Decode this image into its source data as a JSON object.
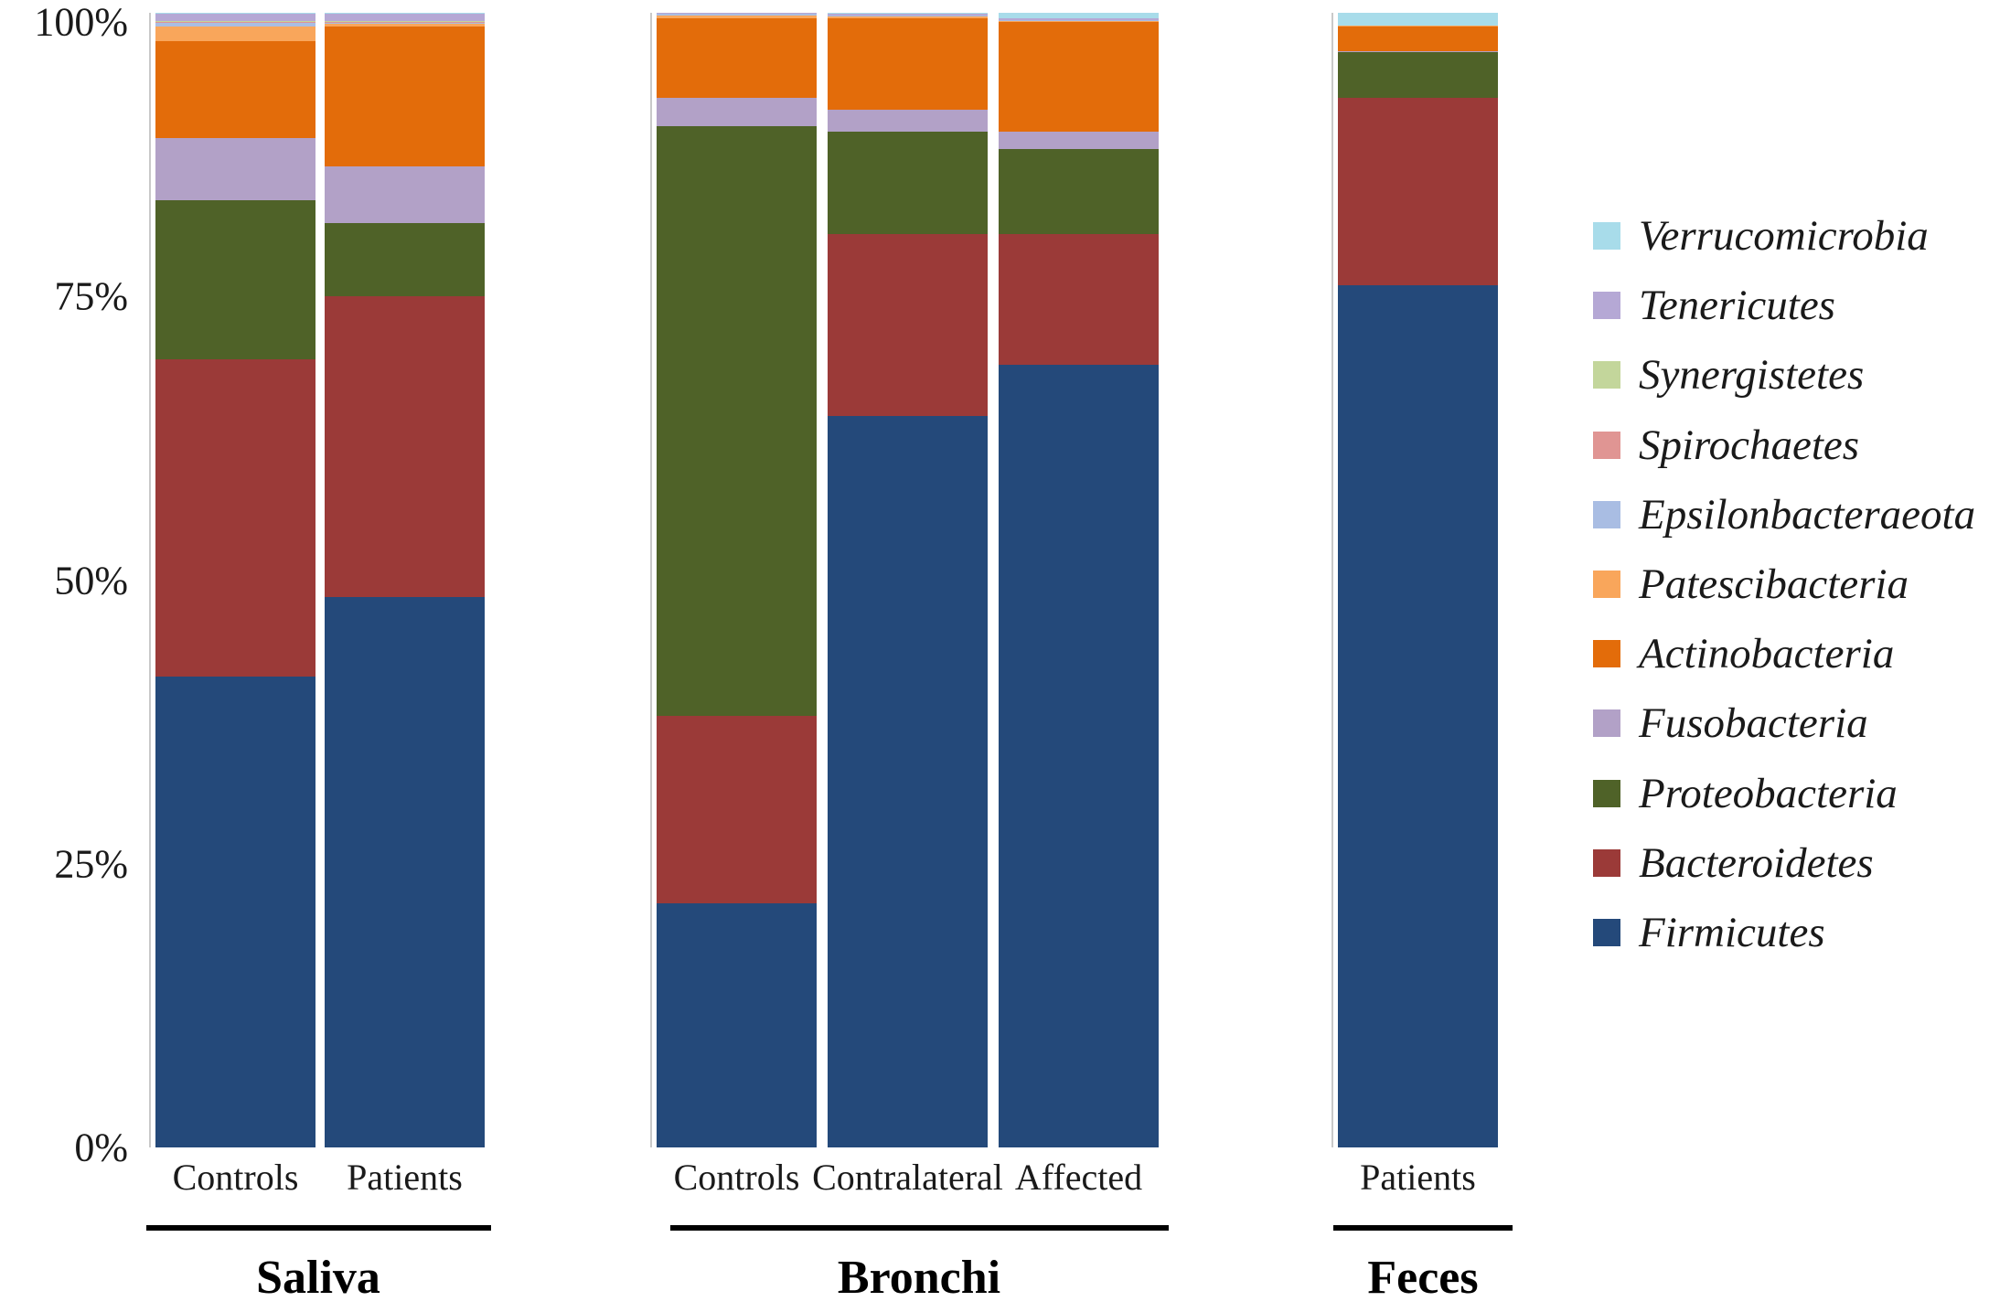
{
  "figure": {
    "background": "#ffffff"
  },
  "y_axis": {
    "ticks": [
      {
        "label": "100%",
        "value": 100
      },
      {
        "label": "75%",
        "value": 75
      },
      {
        "label": "50%",
        "value": 50
      },
      {
        "label": "25%",
        "value": 25
      },
      {
        "label": "0%",
        "value": 0
      }
    ]
  },
  "chart_data": {
    "type": "bar",
    "stacked": true,
    "unit": "percent",
    "ylim": [
      0,
      100
    ],
    "grid": false,
    "legend_position": "right",
    "bars": [
      {
        "label": "Controls",
        "group": "Saliva"
      },
      {
        "label": "Patients",
        "group": "Saliva"
      },
      {
        "label": "Controls",
        "group": "Bronchi"
      },
      {
        "label": "Contralateral",
        "group": "Bronchi"
      },
      {
        "label": "Affected",
        "group": "Bronchi"
      },
      {
        "label": "Patients",
        "group": "Feces"
      }
    ],
    "groups": [
      {
        "label": "Saliva",
        "bar_indices": [
          0,
          1
        ]
      },
      {
        "label": "Bronchi",
        "bar_indices": [
          2,
          3,
          4
        ]
      },
      {
        "label": "Feces",
        "bar_indices": [
          5
        ]
      }
    ],
    "series_bottom_to_top": [
      {
        "name": "Firmicutes",
        "color": "#24497A",
        "values": [
          41.5,
          48.5,
          21.5,
          64.5,
          69.0,
          76.0
        ]
      },
      {
        "name": "Bacteroidetes",
        "color": "#9B3A38",
        "values": [
          28.0,
          26.5,
          16.5,
          16.0,
          11.5,
          16.5
        ]
      },
      {
        "name": "Proteobacteria",
        "color": "#4F6228",
        "values": [
          14.0,
          6.5,
          52.0,
          9.0,
          7.5,
          4.0
        ]
      },
      {
        "name": "Fusobacteria",
        "color": "#B2A1C7",
        "values": [
          5.5,
          5.0,
          2.5,
          2.0,
          1.5,
          0.1
        ]
      },
      {
        "name": "Actinobacteria",
        "color": "#E36C0A",
        "values": [
          8.5,
          12.3,
          7.0,
          8.0,
          9.7,
          2.2
        ]
      },
      {
        "name": "Patescibacteria",
        "color": "#F9A65B",
        "values": [
          1.3,
          0.2,
          0.3,
          0.2,
          0.1,
          0.1
        ]
      },
      {
        "name": "Epsilonbacteraeota",
        "color": "#A9BDE3",
        "values": [
          0.3,
          0.1,
          0.1,
          0.1,
          0.1,
          0.0
        ]
      },
      {
        "name": "Spirochaetes",
        "color": "#E09593",
        "values": [
          0.1,
          0.1,
          0.0,
          0.0,
          0.0,
          0.0
        ]
      },
      {
        "name": "Synergistetes",
        "color": "#C3D69B",
        "values": [
          0.1,
          0.1,
          0.0,
          0.0,
          0.0,
          0.0
        ]
      },
      {
        "name": "Tenericutes",
        "color": "#B5A8D5",
        "values": [
          0.6,
          0.6,
          0.1,
          0.1,
          0.1,
          0.0
        ]
      },
      {
        "name": "Verrucomicrobia",
        "color": "#A8DCEA",
        "values": [
          0.1,
          0.1,
          0.0,
          0.1,
          0.5,
          1.1
        ]
      }
    ],
    "legend_top_to_bottom": [
      "Verrucomicrobia",
      "Tenericutes",
      "Synergistetes",
      "Spirochaetes",
      "Epsilonbacteraeota",
      "Patescibacteria",
      "Actinobacteria",
      "Fusobacteria",
      "Proteobacteria",
      "Bacteroidetes",
      "Firmicutes"
    ]
  }
}
